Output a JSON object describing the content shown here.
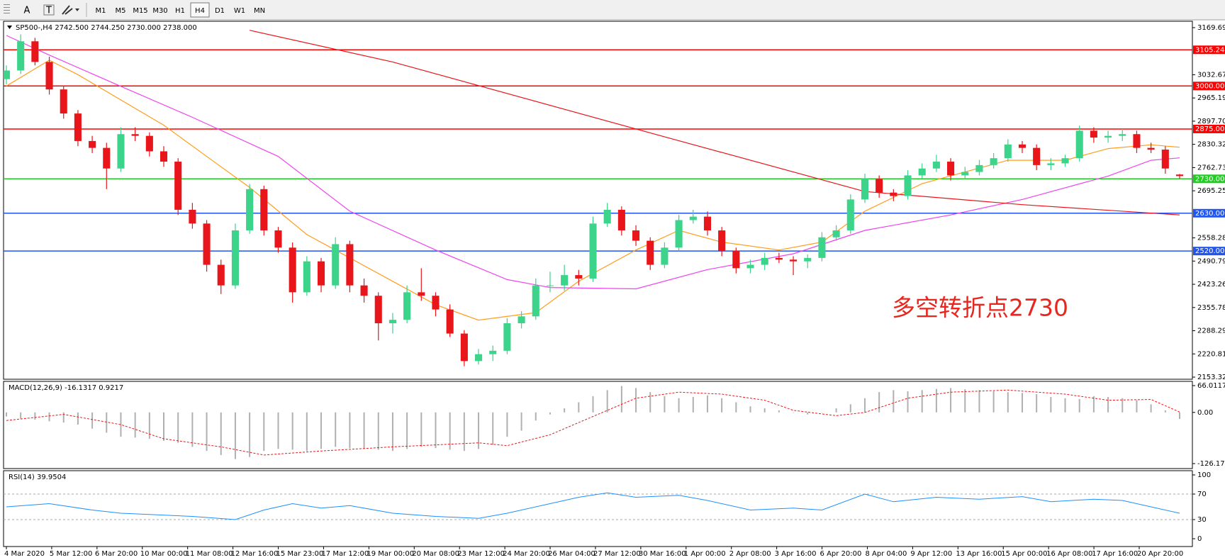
{
  "toolbar": {
    "tools": [
      "A",
      "T"
    ],
    "timeframes": [
      "M1",
      "M5",
      "M15",
      "M30",
      "H1",
      "H4",
      "D1",
      "W1",
      "MN"
    ]
  },
  "time_axis": [
    "4 Mar 2020",
    "5 Mar 12:00",
    "6 Mar 20:00",
    "10 Mar 00:00",
    "11 Mar 08:00",
    "12 Mar 16:00",
    "15 Mar 23:00",
    "17 Mar 12:00",
    "19 Mar 00:00",
    "20 Mar 08:00",
    "23 Mar 12:00",
    "24 Mar 20:00",
    "26 Mar 04:00",
    "27 Mar 12:00",
    "30 Mar 16:00",
    "1 Apr 00:00",
    "2 Apr 08:00",
    "3 Apr 16:00",
    "6 Apr 20:00",
    "8 Apr 04:00",
    "9 Apr 12:00",
    "13 Apr 16:00",
    "15 Apr 00:00",
    "16 Apr 08:00",
    "17 Apr 16:00",
    "20 Apr 20:00"
  ],
  "chart_data": [
    {
      "type": "candlestick",
      "label": "SP500-,H4  2742.500 2744.250 2730.000 2738.000",
      "up_color": "#3cd38a",
      "down_color": "#e8161b",
      "candles": [
        [
          3020,
          3060,
          3005,
          3045
        ],
        [
          3045,
          3150,
          3035,
          3130
        ],
        [
          3130,
          3140,
          3060,
          3070
        ],
        [
          3070,
          3085,
          2975,
          2990
        ],
        [
          2990,
          3000,
          2905,
          2920
        ],
        [
          2920,
          2930,
          2825,
          2840
        ],
        [
          2840,
          2855,
          2805,
          2820
        ],
        [
          2820,
          2835,
          2700,
          2760
        ],
        [
          2760,
          2880,
          2750,
          2860
        ],
        [
          2860,
          2880,
          2840,
          2855
        ],
        [
          2855,
          2865,
          2795,
          2810
        ],
        [
          2810,
          2825,
          2765,
          2780
        ],
        [
          2780,
          2790,
          2625,
          2640
        ],
        [
          2640,
          2660,
          2585,
          2600
        ],
        [
          2600,
          2610,
          2460,
          2480
        ],
        [
          2480,
          2495,
          2395,
          2420
        ],
        [
          2420,
          2600,
          2410,
          2580
        ],
        [
          2580,
          2715,
          2570,
          2700
        ],
        [
          2700,
          2710,
          2565,
          2580
        ],
        [
          2580,
          2590,
          2515,
          2530
        ],
        [
          2530,
          2545,
          2370,
          2400
        ],
        [
          2400,
          2505,
          2390,
          2490
        ],
        [
          2490,
          2500,
          2400,
          2420
        ],
        [
          2420,
          2560,
          2410,
          2540
        ],
        [
          2540,
          2550,
          2400,
          2420
        ],
        [
          2420,
          2440,
          2370,
          2390
        ],
        [
          2390,
          2400,
          2260,
          2310
        ],
        [
          2310,
          2340,
          2280,
          2320
        ],
        [
          2320,
          2420,
          2310,
          2400
        ],
        [
          2400,
          2470,
          2375,
          2390
        ],
        [
          2390,
          2400,
          2330,
          2350
        ],
        [
          2350,
          2365,
          2270,
          2280
        ],
        [
          2280,
          2290,
          2185,
          2200
        ],
        [
          2200,
          2235,
          2190,
          2220
        ],
        [
          2220,
          2245,
          2200,
          2230
        ],
        [
          2230,
          2325,
          2220,
          2310
        ],
        [
          2310,
          2345,
          2295,
          2330
        ],
        [
          2330,
          2440,
          2320,
          2420
        ],
        [
          2420,
          2460,
          2400,
          2420
        ],
        [
          2420,
          2480,
          2405,
          2450
        ],
        [
          2450,
          2465,
          2420,
          2440
        ],
        [
          2440,
          2620,
          2430,
          2600
        ],
        [
          2600,
          2660,
          2590,
          2640
        ],
        [
          2640,
          2650,
          2565,
          2580
        ],
        [
          2580,
          2595,
          2535,
          2550
        ],
        [
          2550,
          2560,
          2465,
          2480
        ],
        [
          2480,
          2545,
          2470,
          2530
        ],
        [
          2530,
          2625,
          2520,
          2610
        ],
        [
          2610,
          2640,
          2600,
          2620
        ],
        [
          2620,
          2635,
          2565,
          2580
        ],
        [
          2580,
          2590,
          2505,
          2520
        ],
        [
          2520,
          2530,
          2455,
          2470
        ],
        [
          2470,
          2495,
          2455,
          2480
        ],
        [
          2480,
          2515,
          2465,
          2500
        ],
        [
          2500,
          2515,
          2485,
          2495
        ],
        [
          2495,
          2505,
          2450,
          2490
        ],
        [
          2490,
          2510,
          2470,
          2500
        ],
        [
          2500,
          2575,
          2490,
          2560
        ],
        [
          2560,
          2595,
          2550,
          2580
        ],
        [
          2580,
          2685,
          2570,
          2670
        ],
        [
          2670,
          2745,
          2660,
          2730
        ],
        [
          2730,
          2740,
          2675,
          2690
        ],
        [
          2690,
          2700,
          2665,
          2680
        ],
        [
          2680,
          2755,
          2670,
          2740
        ],
        [
          2740,
          2775,
          2730,
          2760
        ],
        [
          2760,
          2800,
          2750,
          2780
        ],
        [
          2780,
          2790,
          2725,
          2740
        ],
        [
          2740,
          2765,
          2730,
          2750
        ],
        [
          2750,
          2785,
          2740,
          2770
        ],
        [
          2770,
          2805,
          2760,
          2790
        ],
        [
          2790,
          2845,
          2780,
          2830
        ],
        [
          2830,
          2840,
          2805,
          2820
        ],
        [
          2820,
          2830,
          2755,
          2770
        ],
        [
          2770,
          2790,
          2755,
          2775
        ],
        [
          2775,
          2800,
          2765,
          2790
        ],
        [
          2790,
          2885,
          2780,
          2870
        ],
        [
          2870,
          2880,
          2835,
          2850
        ],
        [
          2850,
          2870,
          2835,
          2855
        ],
        [
          2855,
          2875,
          2840,
          2860
        ],
        [
          2860,
          2870,
          2805,
          2820
        ],
        [
          2820,
          2835,
          2805,
          2815
        ],
        [
          2815,
          2825,
          2745,
          2760
        ],
        [
          2742.5,
          2744.25,
          2730,
          2738
        ]
      ],
      "ylim": [
        2153.325,
        3169.69
      ],
      "yticks": [
        {
          "value": 3169.69,
          "label": "3169.690"
        },
        3032.675,
        {
          "value": 2965.19,
          "label": "2965.190"
        },
        2897.705,
        {
          "value": 2830.32,
          "label": "2830.320"
        },
        2762.735,
        {
          "value": 2695.25,
          "label": "2695.250"
        },
        {
          "value": 2558.28,
          "label": "2558.280"
        },
        2490.795,
        2423.265,
        {
          "value": 2355.78,
          "label": "2355.780"
        },
        2288.295,
        {
          "value": 2220.81,
          "label": "2220.810"
        },
        2153.325
      ],
      "moving_averages": [
        {
          "color": "#ff9d1c",
          "x": [
            0,
            3,
            5,
            11,
            14,
            17,
            21,
            24,
            27,
            30,
            33,
            37,
            40,
            44,
            47,
            50,
            54,
            57,
            60,
            64,
            67,
            70,
            74,
            77,
            80,
            82
          ],
          "values": [
            3000,
            3075,
            3033,
            2886,
            2795,
            2705,
            2568,
            2500,
            2432,
            2364,
            2319,
            2341,
            2432,
            2523,
            2580,
            2546,
            2523,
            2546,
            2636,
            2716,
            2750,
            2784,
            2784,
            2818,
            2829,
            2822
          ]
        },
        {
          "color": "#ee44ee",
          "x": [
            0,
            3,
            8,
            13,
            19,
            24,
            30,
            35,
            38,
            44,
            49,
            55,
            60,
            66,
            71,
            77,
            80,
            82
          ],
          "values": [
            3147,
            3090,
            2999,
            2909,
            2795,
            2636,
            2523,
            2437,
            2414,
            2410,
            2466,
            2512,
            2580,
            2625,
            2670,
            2738,
            2784,
            2791
          ]
        },
        {
          "color": "#e8161b",
          "x": [
            17,
            27,
            44,
            60,
            71,
            82
          ],
          "values": [
            3162,
            3070,
            2875,
            2693,
            2655,
            2625
          ]
        }
      ],
      "levels": [
        {
          "value": 3105.244,
          "label": "3105.244",
          "color": "#ff0000"
        },
        {
          "value": 3000,
          "label": "3000.000",
          "color": "#ff0000"
        },
        {
          "value": 2875,
          "label": "2875.000",
          "color": "#ff0000"
        },
        {
          "value": 2730,
          "label": "2730.000",
          "color": "#22cc22"
        },
        {
          "value": 2630,
          "label": "2630.000",
          "color": "#2255ee"
        },
        {
          "value": 2520,
          "label": "2520.000",
          "color": "#2255ee"
        }
      ],
      "annotation": {
        "text": "多空转折点2730",
        "color": "#e8261e"
      }
    },
    {
      "type": "macd",
      "label": "MACD(12,26,9) -16.1317 0.9217",
      "histogram_color": "#b0b0b0",
      "histogram": [
        -10,
        -15,
        -18,
        -22,
        -25,
        -30,
        -40,
        -50,
        -60,
        -62,
        -65,
        -70,
        -75,
        -85,
        -95,
        -105,
        -115,
        -110,
        -95,
        -90,
        -92,
        -95,
        -90,
        -85,
        -88,
        -90,
        -92,
        -95,
        -90,
        -85,
        -88,
        -92,
        -95,
        -90,
        -80,
        -60,
        -45,
        -20,
        -5,
        10,
        25,
        40,
        55,
        65,
        60,
        50,
        40,
        35,
        38,
        42,
        35,
        25,
        15,
        10,
        5,
        0,
        -5,
        0,
        10,
        20,
        35,
        50,
        55,
        52,
        55,
        58,
        60,
        57,
        55,
        52,
        50,
        48,
        45,
        38,
        35,
        33,
        40,
        38,
        35,
        30,
        20,
        5,
        -16.1317
      ],
      "signal": {
        "color": "#e8161b",
        "x": [
          0,
          4,
          8,
          11,
          15,
          18,
          22,
          27,
          30,
          33,
          35,
          38,
          41,
          44,
          47,
          50,
          53,
          55,
          58,
          60,
          63,
          66,
          70,
          74,
          77,
          80,
          82
        ],
        "values": [
          -20,
          -5,
          -30,
          -65,
          -85,
          -105,
          -95,
          -85,
          -80,
          -75,
          -82,
          -55,
          -10,
          35,
          50,
          45,
          30,
          5,
          -8,
          0,
          35,
          50,
          55,
          45,
          30,
          32,
          0.9217
        ]
      },
      "ylim": [
        -126.17,
        66.0117
      ],
      "yticks": [
        66.0117,
        {
          "value": 0,
          "label": "0.00"
        },
        -126.17
      ]
    },
    {
      "type": "line",
      "label": "RSI(14) 39.9504",
      "color": "#1e90ff",
      "x": [
        0,
        3,
        6,
        8,
        10,
        13,
        16,
        18,
        20,
        22,
        24,
        27,
        30,
        33,
        35,
        38,
        40,
        42,
        44,
        47,
        49,
        52,
        55,
        57,
        60,
        62,
        65,
        68,
        71,
        73,
        76,
        78,
        80,
        82
      ],
      "values": [
        50,
        55,
        45,
        40,
        38,
        35,
        30,
        45,
        55,
        48,
        52,
        40,
        35,
        32,
        40,
        55,
        65,
        72,
        65,
        68,
        60,
        45,
        48,
        45,
        70,
        58,
        65,
        62,
        66,
        58,
        62,
        60,
        50,
        39.9504
      ],
      "ylim": [
        0,
        100
      ],
      "yticks": [
        100,
        70,
        30,
        0
      ]
    }
  ]
}
